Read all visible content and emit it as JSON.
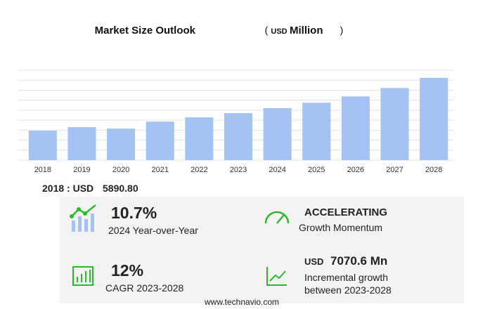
{
  "chart_data": {
    "type": "bar",
    "title": "Market Size Outlook",
    "unit_open": "(",
    "unit_currency": "USD",
    "unit_name": "Million",
    "unit_close": ")",
    "categories": [
      "2018",
      "2019",
      "2020",
      "2021",
      "2022",
      "2023",
      "2024",
      "2025",
      "2026",
      "2027",
      "2028"
    ],
    "values": [
      5890.8,
      6590,
      6310,
      7720,
      8560,
      9400,
      10406,
      11500,
      12760,
      14440,
      16470.6
    ],
    "color": "#a4c2f4",
    "ylim": [
      0,
      18000
    ],
    "grid": true
  },
  "summary": {
    "base_label": "2018 : USD",
    "base_value": "5890.80",
    "yoy_value": "10.7%",
    "yoy_label": "2024 Year-over-Year",
    "momentum_value": "ACCELERATING",
    "momentum_label": "Growth Momentum",
    "cagr_value": "12%",
    "cagr_label": "CAGR 2023-2028",
    "incr_currency": "USD",
    "incr_value": "7070.6 Mn",
    "incr_label_1": "Incremental growth",
    "incr_label_2": "between 2023-2028"
  },
  "footer": "www.technavio.com"
}
